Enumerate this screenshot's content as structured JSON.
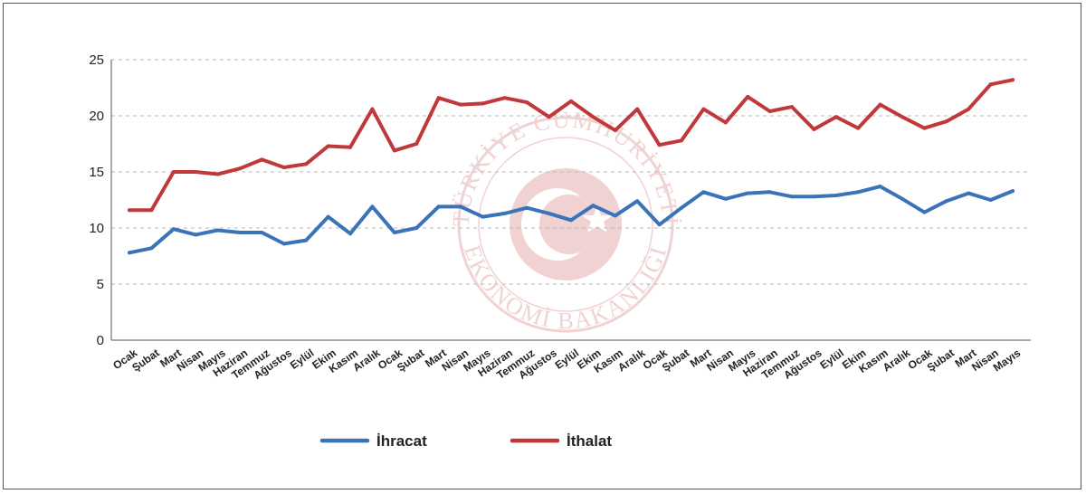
{
  "chart_data": {
    "type": "line",
    "title": "",
    "xlabel": "",
    "ylabel": "",
    "ylim": [
      0,
      25
    ],
    "yticks": [
      "0",
      "5",
      "10",
      "15",
      "20",
      "25"
    ],
    "grid": "horizontal dashed",
    "legend_position": "bottom",
    "watermark": "TÜRKİYE CUMHURİYETİ EKONOMİ BAKANLIĞI",
    "categories": [
      "Ocak",
      "Şubat",
      "Mart",
      "Nisan",
      "Mayıs",
      "Haziran",
      "Temmuz",
      "Ağustos",
      "Eylül",
      "Ekim",
      "Kasım",
      "Aralık",
      "Ocak",
      "Şubat",
      "Mart",
      "Nisan",
      "Mayıs",
      "Haziran",
      "Temmuz",
      "Ağustos",
      "Eylül",
      "Ekim",
      "Kasım",
      "Aralık",
      "Ocak",
      "Şubat",
      "Mart",
      "Nisan",
      "Mayıs",
      "Haziran",
      "Temmuz",
      "Ağustos",
      "Eylül",
      "Ekim",
      "Kasım",
      "Aralık",
      "Ocak",
      "Şubat",
      "Mart",
      "Nisan",
      "Mayıs"
    ],
    "series": [
      {
        "name": "İhracat",
        "color": "#3a73b8",
        "values": [
          7.8,
          8.2,
          9.9,
          9.4,
          9.8,
          9.6,
          9.6,
          8.6,
          8.9,
          11.0,
          9.5,
          11.9,
          9.6,
          10.0,
          11.9,
          11.9,
          11.0,
          11.3,
          11.8,
          11.3,
          10.7,
          12.0,
          11.1,
          12.4,
          10.3,
          11.8,
          13.2,
          12.6,
          13.1,
          13.2,
          12.8,
          12.8,
          12.9,
          13.2,
          13.7,
          12.6,
          11.4,
          12.4,
          13.1,
          12.5,
          13.3
        ]
      },
      {
        "name": "İthalat",
        "color": "#c0383a",
        "values": [
          11.6,
          11.6,
          15.0,
          15.0,
          14.8,
          15.3,
          16.1,
          15.4,
          15.7,
          17.3,
          17.2,
          20.6,
          16.9,
          17.5,
          21.6,
          21.0,
          21.1,
          21.6,
          21.2,
          19.9,
          21.3,
          19.9,
          18.7,
          20.6,
          17.4,
          17.8,
          20.6,
          19.4,
          21.7,
          20.4,
          20.8,
          18.8,
          19.9,
          18.9,
          21.0,
          19.9,
          18.9,
          19.5,
          20.6,
          22.8,
          23.2
        ]
      }
    ]
  }
}
